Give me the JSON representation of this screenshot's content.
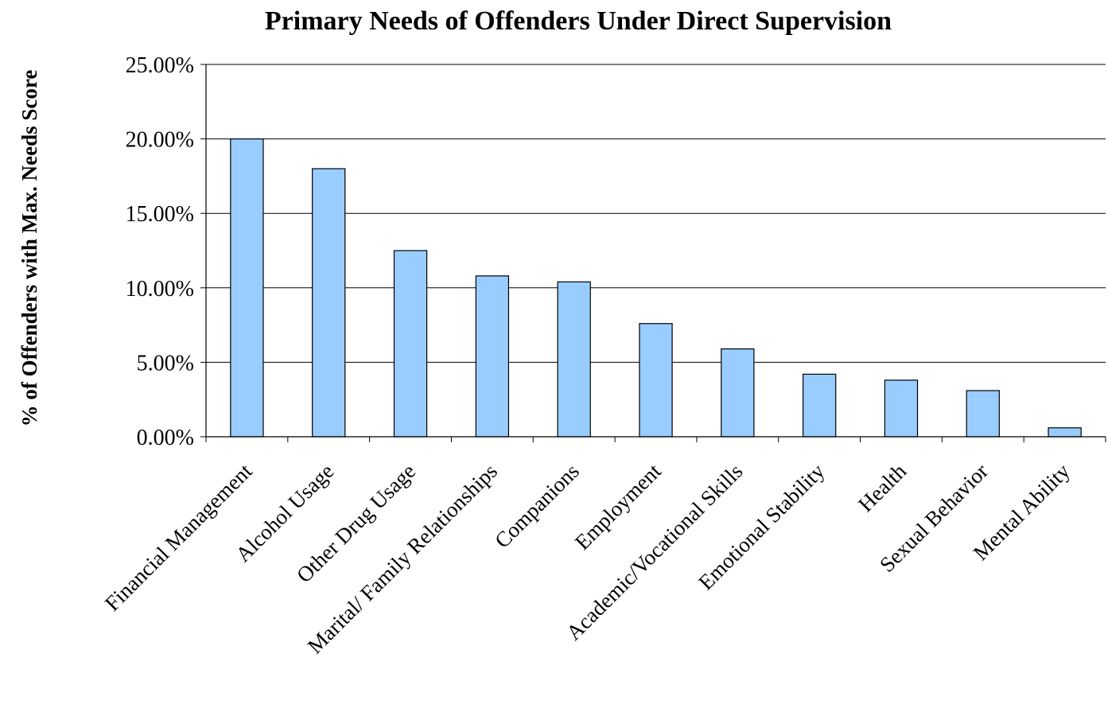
{
  "chart_data": {
    "type": "bar",
    "title": "Primary Needs of Offenders Under Direct Supervision",
    "xlabel": "",
    "ylabel": "% of Offenders with Max. Needs Score",
    "categories": [
      "Financial Management",
      "Alcohol Usage",
      "Other Drug Usage",
      "Marital/ Family Relationships",
      "Companions",
      "Employment",
      "Academic/Vocational Skills",
      "Emotional Stability",
      "Health",
      "Sexual Behavior",
      "Mental Ability"
    ],
    "values": [
      20.0,
      18.0,
      12.5,
      10.8,
      10.4,
      7.6,
      5.9,
      4.2,
      3.8,
      3.1,
      0.6
    ],
    "ylim": [
      0,
      25
    ],
    "yticks": [
      "0.00%",
      "5.00%",
      "10.00%",
      "15.00%",
      "20.00%",
      "25.00%"
    ],
    "grid": true,
    "legend": "none",
    "colors": {
      "bar_fill": "#99CCFF",
      "bar_stroke": "#000000",
      "grid": "#000000"
    }
  }
}
